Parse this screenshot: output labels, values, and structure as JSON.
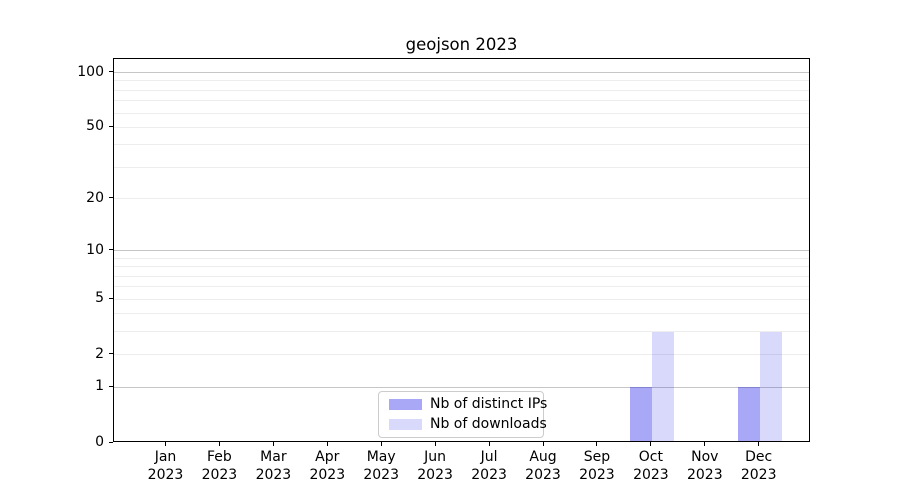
{
  "chart_data": {
    "type": "bar",
    "title": "geojson 2023",
    "months": [
      "Jan",
      "Feb",
      "Mar",
      "Apr",
      "May",
      "Jun",
      "Jul",
      "Aug",
      "Sep",
      "Oct",
      "Nov",
      "Dec"
    ],
    "year": "2023",
    "categories": [
      "Jan 2023",
      "Feb 2023",
      "Mar 2023",
      "Apr 2023",
      "May 2023",
      "Jun 2023",
      "Jul 2023",
      "Aug 2023",
      "Sep 2023",
      "Oct 2023",
      "Nov 2023",
      "Dec 2023"
    ],
    "series": [
      {
        "name": "Nb of distinct IPs",
        "color": "#0000e6",
        "alpha": 0.34,
        "blended_hex": "#a8a8f6",
        "values": [
          0,
          0,
          0,
          0,
          0,
          0,
          0,
          0,
          0,
          1,
          0,
          1
        ]
      },
      {
        "name": "Nb of downloads",
        "color": "#0000e6",
        "alpha": 0.15,
        "blended_hex": "#d9d9fb",
        "values": [
          0,
          0,
          0,
          0,
          0,
          0,
          0,
          0,
          0,
          3,
          0,
          3
        ]
      }
    ],
    "xlabel": "",
    "ylabel": "",
    "yscale": "log1p",
    "ylim": [
      0,
      118.6
    ],
    "yticks": [
      0,
      1,
      2,
      5,
      10,
      20,
      50,
      100
    ],
    "grid": {
      "on": true,
      "major_lines": [
        1,
        10,
        100
      ],
      "minor_lines": [
        2,
        3,
        4,
        5,
        6,
        7,
        8,
        9,
        20,
        30,
        40,
        50,
        60,
        70,
        80,
        90
      ],
      "major_color": "#c6c6c6",
      "minor_color": "#ededed"
    },
    "legend": {
      "position": "bottom-center",
      "entries": [
        "Nb of distinct IPs",
        "Nb of downloads"
      ]
    },
    "axis_color": "#000000",
    "background_color": "#ffffff"
  }
}
